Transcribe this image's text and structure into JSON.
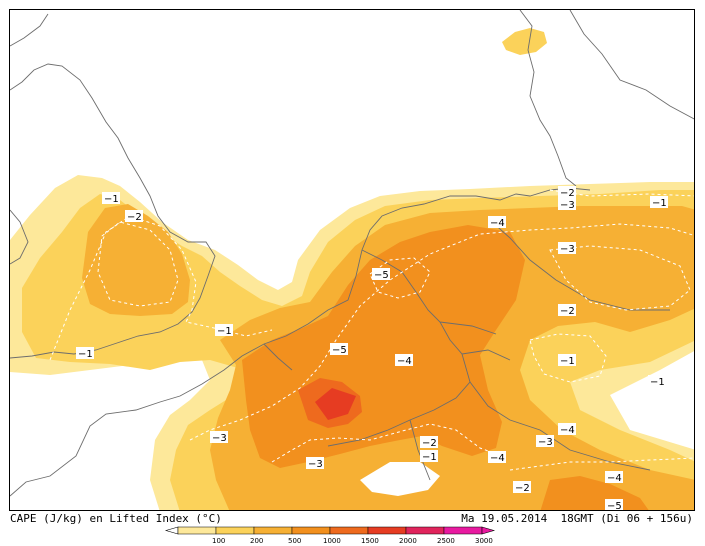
{
  "footer": {
    "left": "CAPE (J/kg) en Lifted Index (°C)",
    "right": "Ma 19.05.2014  18GMT (Di 06 + 156u)"
  },
  "colors": {
    "cape_100": "#fde89a",
    "cape_200": "#fbd25a",
    "cape_500": "#f6b034",
    "cape_1000": "#f2901e",
    "cape_1500": "#ee6a1e",
    "cape_2000": "#e63c22",
    "cape_2500": "#e0245c",
    "cape_3000": "#e81aa0",
    "coast": "#6d6d6d",
    "contour": "#ffffff"
  },
  "legend": {
    "ticks": [
      "100",
      "200",
      "500",
      "1000",
      "1500",
      "2000",
      "2500",
      "3000"
    ]
  },
  "lifted_index_labels": [
    "-1",
    "-2",
    "-1",
    "-1",
    "-5",
    "-4",
    "-2",
    "-3",
    "-1",
    "-3",
    "-2",
    "-5",
    "-4",
    "-1",
    "-1",
    "-3",
    "-4",
    "-2",
    "-1",
    "-4",
    "-3",
    "-3",
    "-2",
    "-4",
    "-5"
  ]
}
